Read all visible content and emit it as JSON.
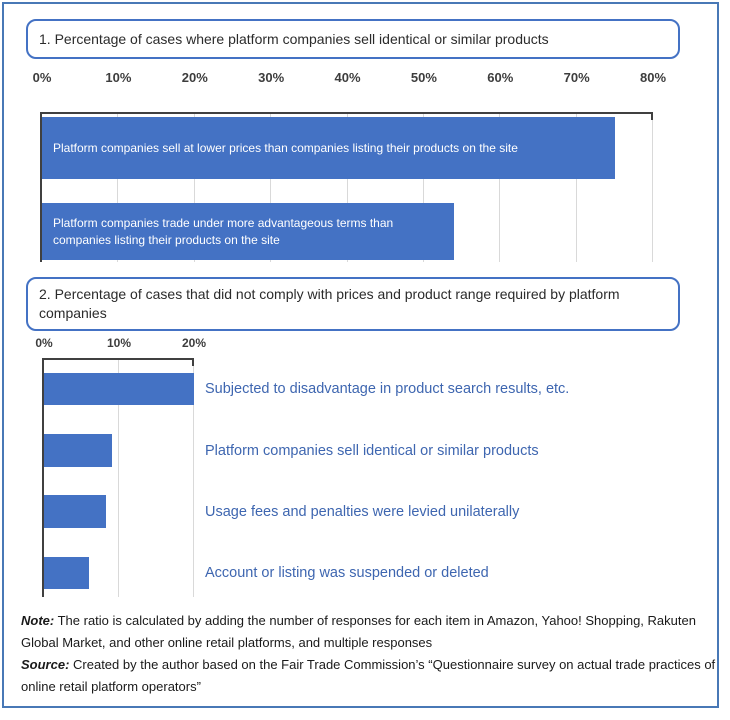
{
  "theme": {
    "outer_border_color": "#4878B6",
    "title_box_border_color": "#4472C4",
    "bar_color": "#4472C4",
    "bar_text_color": "#FFFFFF",
    "side_label_color": "#3E66B0",
    "gridline_color": "#D9D9D9",
    "axis_line_color": "#404040",
    "title_text_color": "#2B2B2B",
    "tick_label_color": "#3D3D3D",
    "note_text_color": "#1A1A1A"
  },
  "chart_data": [
    {
      "type": "bar",
      "orientation": "horizontal",
      "title": "1. Percentage of cases where platform companies sell identical or similar products",
      "xlabel": "",
      "ylabel": "",
      "xlim": [
        0,
        80
      ],
      "xmax": 80,
      "tick_labels": [
        "0%",
        "10%",
        "20%",
        "30%",
        "40%",
        "50%",
        "60%",
        "70%",
        "80%"
      ],
      "grid": true,
      "bar_label_position": "inside",
      "categories": [
        "Platform companies sell at lower prices than companies listing their products on the site",
        "Platform companies trade under more advantageous terms than companies listing their products on the site"
      ],
      "values": [
        75,
        54
      ]
    },
    {
      "type": "bar",
      "orientation": "horizontal",
      "title": "2. Percentage of cases that did not comply with prices and product range required by platform companies",
      "xlabel": "",
      "ylabel": "",
      "xlim": [
        0,
        20
      ],
      "xmax": 20,
      "tick_labels": [
        "0%",
        "10%",
        "20%"
      ],
      "grid": true,
      "bar_label_position": "right",
      "categories": [
        "Subjected to disadvantage in product search results, etc.",
        "Platform companies sell identical or similar products",
        "Usage fees and penalties were levied unilaterally",
        "Account or listing was suspended or deleted"
      ],
      "values": [
        20,
        9,
        8.3,
        6
      ]
    }
  ],
  "notes": {
    "note_label": "Note:",
    "note_text": " The ratio is calculated by adding the number of responses for each item in Amazon, Yahoo! Shopping, Rakuten Global Market, and other online retail platforms, and multiple responses",
    "source_label": "Source:",
    "source_text": " Created by the author based on the Fair Trade Commission’s “Questionnaire survey on actual trade practices of online retail platform operators”"
  }
}
